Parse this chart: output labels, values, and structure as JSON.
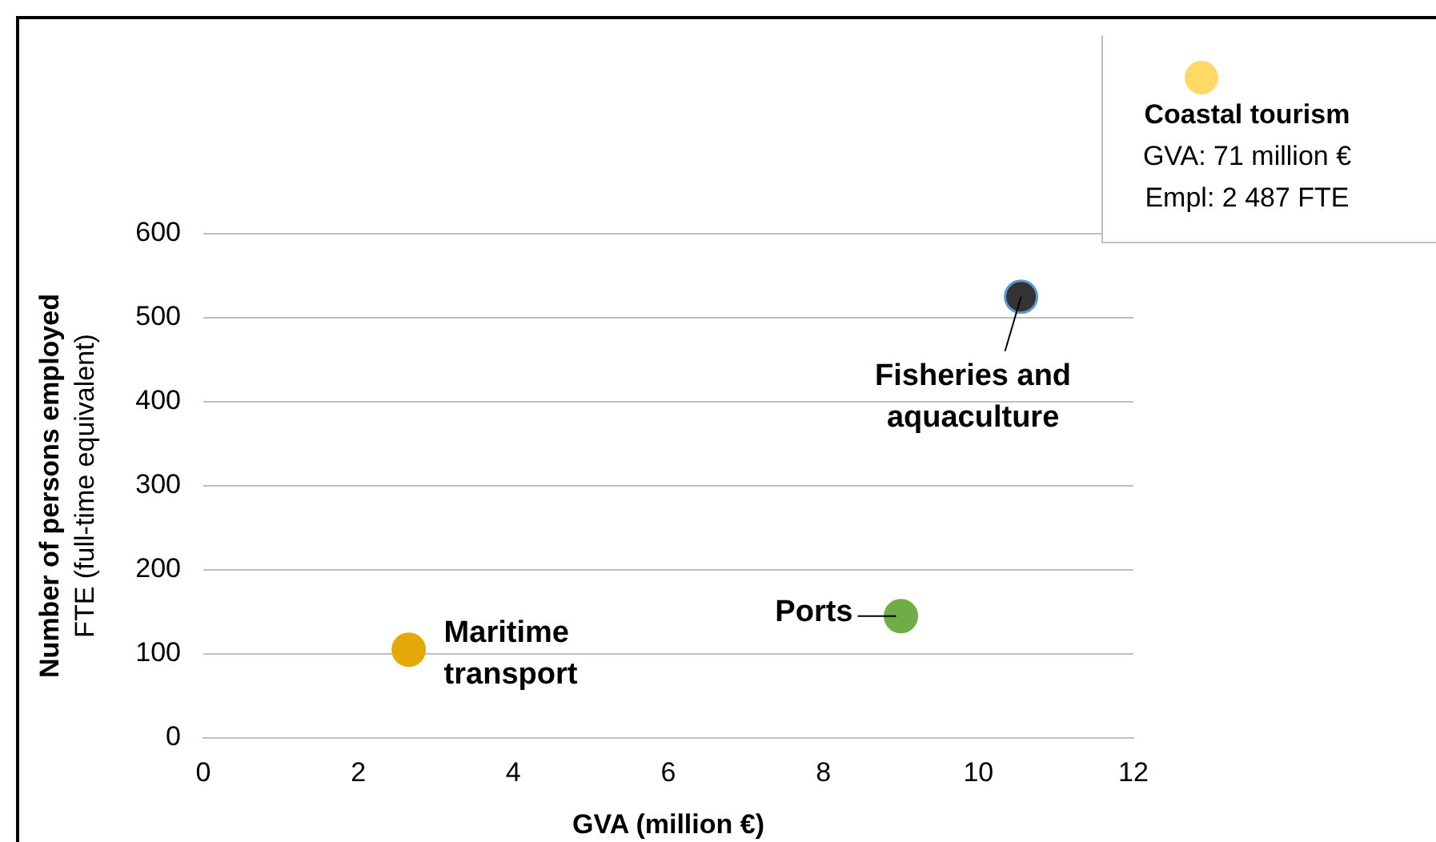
{
  "chart_data": [
    {
      "type": "scatter",
      "xlabel": "GVA (million €)",
      "ylabel": "Number of persons employed\nFTE (full-time equivalent)",
      "xlim": [
        0,
        12
      ],
      "xticks": [
        0,
        2,
        4,
        6,
        8,
        10,
        12
      ],
      "ylim": [
        0,
        600
      ],
      "yticks": [
        0,
        100,
        200,
        300,
        400,
        500,
        600
      ],
      "grid": "y",
      "legend": false,
      "marker": "circle",
      "series": [
        {
          "name": "Maritime transport",
          "color": "#e3a90a",
          "x": [
            2.65
          ],
          "values": [
            105
          ]
        },
        {
          "name": "Ports",
          "color": "#70ad47",
          "x": [
            9.0
          ],
          "values": [
            145
          ]
        },
        {
          "name": "Fisheries and aquaculture",
          "color": "#333333",
          "x": [
            10.55
          ],
          "values": [
            525
          ]
        }
      ]
    },
    {
      "type": "other",
      "title": "Coastal tourism",
      "color": "#ffd966",
      "annotations": [
        "GVA: 71 million €",
        "Empl: 2 487 FTE"
      ]
    }
  ]
}
